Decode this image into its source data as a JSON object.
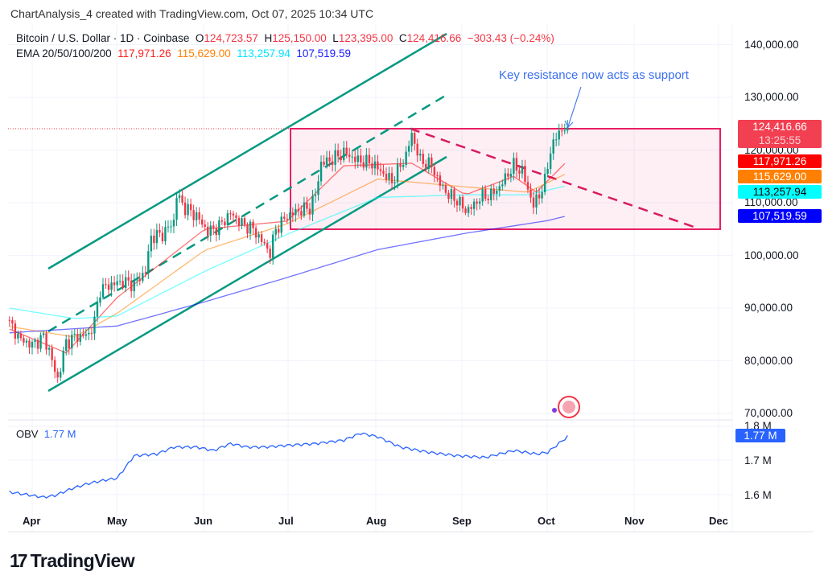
{
  "credit": "ChartAnalysis_4 created with TradingView.com, Oct 07, 2025 10:34 UTC",
  "legend": {
    "symbol": "Bitcoin / U.S. Dollar · 1D · Coinbase",
    "o_label": "O",
    "open": "124,723.57",
    "h_label": "H",
    "high": "125,150.00",
    "l_label": "L",
    "low": "123,395.00",
    "c_label": "C",
    "close": "124,416.66",
    "change": "−303.43 (−0.24%)",
    "ema_label": "EMA 20/50/100/200",
    "ema20": "117,971.26",
    "ema50": "115,629.00",
    "ema100": "113,257.94",
    "ema200": "107,519.59"
  },
  "annotation": "Key resistance now acts as support",
  "price_labels": {
    "last": "124,416.66",
    "countdown": "13:25:55",
    "ema20": "117,971.26",
    "ema50": "115,629.00",
    "ema100": "113,257.94",
    "ema200": "107,519.59"
  },
  "price_axis": [
    "140,000.00",
    "130,000.00",
    "120,000.00",
    "110,000.00",
    "100,000.00",
    "90,000.00",
    "80,000.00",
    "70,000.00"
  ],
  "obv": {
    "label": "OBV",
    "value": "1.77 M",
    "axis": [
      "1.8 M",
      "1.7 M",
      "1.6 M"
    ],
    "last_label": "1.77 M"
  },
  "months": [
    "Apr",
    "May",
    "Jun",
    "Jul",
    "Aug",
    "Sep",
    "Oct",
    "Nov",
    "Dec"
  ],
  "logo": "TradingView",
  "colors": {
    "up": "#089981",
    "down": "#f23645",
    "ema20": "#ff0000",
    "ema50": "#ff8000",
    "ema100": "#00ffff",
    "ema200": "#0000ff",
    "channel": "#089981",
    "box": "#e91e63",
    "obv": "#2962ff"
  },
  "chart_data": {
    "type": "line",
    "title": "Bitcoin / U.S. Dollar · 1D · Coinbase",
    "x_unit": "days since Apr 1, 2025",
    "ylim": [
      70000,
      142000
    ],
    "series": [
      {
        "name": "Close",
        "points": [
          [
            -8,
            87000
          ],
          [
            -4,
            84000
          ],
          [
            0,
            83000
          ],
          [
            4,
            84500
          ],
          [
            6,
            82000
          ],
          [
            8,
            78000
          ],
          [
            9,
            76500
          ],
          [
            12,
            83500
          ],
          [
            15,
            84500
          ],
          [
            20,
            85000
          ],
          [
            22,
            87500
          ],
          [
            24,
            93500
          ],
          [
            28,
            94500
          ],
          [
            32,
            95000
          ],
          [
            36,
            94500
          ],
          [
            40,
            97000
          ],
          [
            42,
            103500
          ],
          [
            46,
            104000
          ],
          [
            50,
            106500
          ],
          [
            51,
            111500
          ],
          [
            54,
            109000
          ],
          [
            58,
            107500
          ],
          [
            62,
            104500
          ],
          [
            66,
            105500
          ],
          [
            70,
            108000
          ],
          [
            74,
            106000
          ],
          [
            78,
            105000
          ],
          [
            82,
            102000
          ],
          [
            84,
            100500
          ],
          [
            86,
            105000
          ],
          [
            90,
            107500
          ],
          [
            94,
            108500
          ],
          [
            98,
            109000
          ],
          [
            100,
            111500
          ],
          [
            102,
            117500
          ],
          [
            105,
            118000
          ],
          [
            110,
            119500
          ],
          [
            115,
            118000
          ],
          [
            120,
            117500
          ],
          [
            124,
            115500
          ],
          [
            127,
            114000
          ],
          [
            130,
            117000
          ],
          [
            132,
            119000
          ],
          [
            134,
            123000
          ],
          [
            137,
            118000
          ],
          [
            141,
            117000
          ],
          [
            144,
            113500
          ],
          [
            147,
            111500
          ],
          [
            150,
            110500
          ],
          [
            153,
            108500
          ],
          [
            156,
            109500
          ],
          [
            158,
            111000
          ],
          [
            162,
            111500
          ],
          [
            165,
            113000
          ],
          [
            168,
            115500
          ],
          [
            170,
            117000
          ],
          [
            173,
            116000
          ],
          [
            175,
            112500
          ],
          [
            177,
            109500
          ],
          [
            179,
            111500
          ],
          [
            181,
            114000
          ],
          [
            183,
            120000
          ],
          [
            186,
            123500
          ],
          [
            189,
            124416.66
          ]
        ]
      },
      {
        "name": "EMA 20",
        "points": [
          [
            -8,
            86000
          ],
          [
            12,
            81500
          ],
          [
            30,
            92000
          ],
          [
            61,
            105000
          ],
          [
            90,
            106500
          ],
          [
            110,
            117000
          ],
          [
            134,
            117500
          ],
          [
            153,
            111500
          ],
          [
            170,
            115000
          ],
          [
            178,
            112000
          ],
          [
            189,
            117971.26
          ]
        ]
      },
      {
        "name": "EMA 50",
        "points": [
          [
            -8,
            86500
          ],
          [
            15,
            84500
          ],
          [
            30,
            89000
          ],
          [
            61,
            101000
          ],
          [
            90,
            106000
          ],
          [
            122,
            114500
          ],
          [
            153,
            113000
          ],
          [
            175,
            112000
          ],
          [
            189,
            115629
          ]
        ]
      },
      {
        "name": "EMA 100",
        "points": [
          [
            -8,
            90000
          ],
          [
            15,
            88000
          ],
          [
            30,
            88500
          ],
          [
            61,
            97000
          ],
          [
            90,
            104000
          ],
          [
            122,
            111000
          ],
          [
            153,
            111500
          ],
          [
            175,
            111500
          ],
          [
            189,
            113257.94
          ]
        ]
      },
      {
        "name": "EMA 200",
        "points": [
          [
            -8,
            85300
          ],
          [
            30,
            86600
          ],
          [
            61,
            91200
          ],
          [
            90,
            95800
          ],
          [
            122,
            101100
          ],
          [
            153,
            104200
          ],
          [
            182,
            106600
          ],
          [
            189,
            107519.59
          ]
        ]
      }
    ],
    "obv_series": [
      [
        -8,
        1.61
      ],
      [
        4,
        1.595
      ],
      [
        8,
        1.6
      ],
      [
        14,
        1.62
      ],
      [
        20,
        1.635
      ],
      [
        26,
        1.645
      ],
      [
        30,
        1.65
      ],
      [
        36,
        1.715
      ],
      [
        44,
        1.72
      ],
      [
        50,
        1.74
      ],
      [
        58,
        1.74
      ],
      [
        64,
        1.73
      ],
      [
        70,
        1.75
      ],
      [
        76,
        1.74
      ],
      [
        82,
        1.74
      ],
      [
        90,
        1.745
      ],
      [
        100,
        1.75
      ],
      [
        110,
        1.76
      ],
      [
        116,
        1.78
      ],
      [
        122,
        1.77
      ],
      [
        130,
        1.74
      ],
      [
        140,
        1.725
      ],
      [
        150,
        1.715
      ],
      [
        160,
        1.71
      ],
      [
        170,
        1.73
      ],
      [
        178,
        1.72
      ],
      [
        182,
        1.725
      ],
      [
        189,
        1.77
      ]
    ],
    "support_zone": [
      105000,
      124416.66
    ],
    "grid": true
  }
}
